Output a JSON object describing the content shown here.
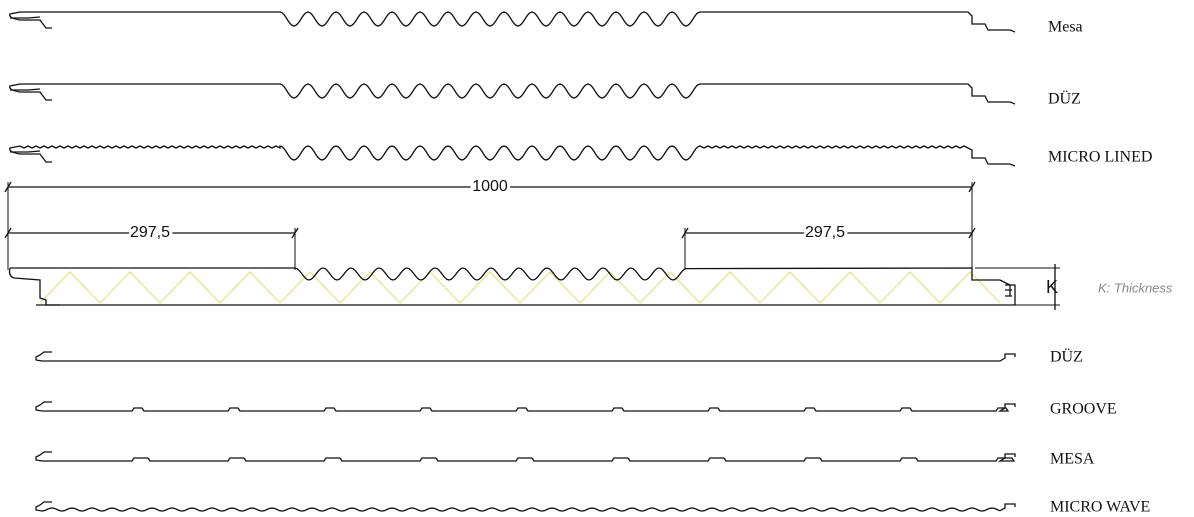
{
  "profiles_top": [
    {
      "label": "Mesa"
    },
    {
      "label": "DÜZ"
    },
    {
      "label": "MICRO LINED"
    }
  ],
  "dimensions": {
    "total": "1000",
    "left": "297,5",
    "right": "297,5",
    "thickness_symbol": "K",
    "thickness_note": "K: Thickness"
  },
  "profiles_bottom": [
    {
      "label": "DÜZ"
    },
    {
      "label": "GROOVE"
    },
    {
      "label": "MESA"
    },
    {
      "label": "MICRO WAVE"
    }
  ]
}
